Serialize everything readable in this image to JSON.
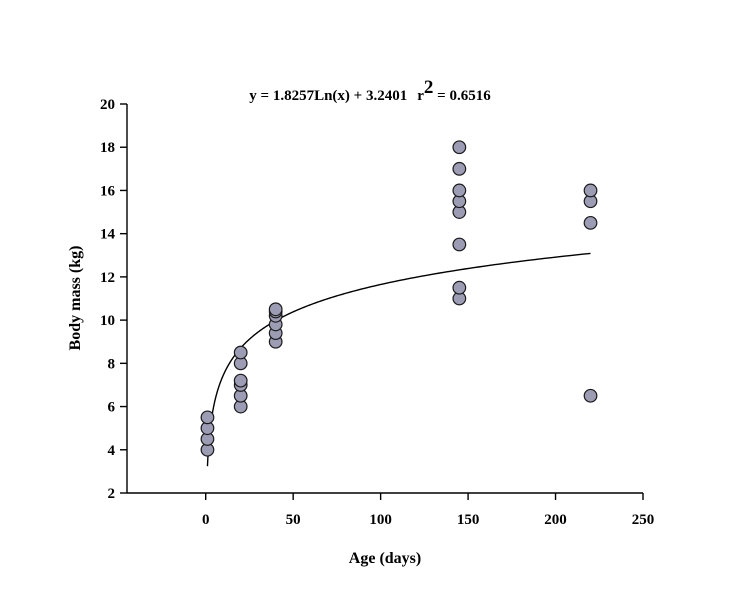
{
  "chart_data": {
    "type": "scatter",
    "title": "y = 1.8257Ln(x) + 3.2401",
    "r2_label": "r",
    "r2_exponent": "2",
    "r2_value": " = 0.6516",
    "xlabel": "Age (days)",
    "ylabel": "Body mass (kg)",
    "xlim": [
      -45,
      250
    ],
    "ylim": [
      2,
      20
    ],
    "x_ticks": [
      0,
      50,
      100,
      150,
      200,
      250
    ],
    "y_ticks": [
      2,
      4,
      6,
      8,
      10,
      12,
      14,
      16,
      18,
      20
    ],
    "grid": false,
    "legend": "none",
    "marker_color": "#9c9cb4",
    "trendline": {
      "type": "logarithmic",
      "a": 1.8257,
      "b": 3.2401,
      "x_range": [
        1,
        220
      ]
    },
    "series": [
      {
        "points": [
          {
            "x": 1,
            "y": 4.0
          },
          {
            "x": 1,
            "y": 4.5
          },
          {
            "x": 1,
            "y": 5.0
          },
          {
            "x": 1,
            "y": 5.5
          },
          {
            "x": 20,
            "y": 6.0
          },
          {
            "x": 20,
            "y": 6.5
          },
          {
            "x": 20,
            "y": 7.0
          },
          {
            "x": 20,
            "y": 7.2
          },
          {
            "x": 20,
            "y": 8.0
          },
          {
            "x": 20,
            "y": 8.5
          },
          {
            "x": 40,
            "y": 9.0
          },
          {
            "x": 40,
            "y": 9.4
          },
          {
            "x": 40,
            "y": 9.8
          },
          {
            "x": 40,
            "y": 10.2
          },
          {
            "x": 40,
            "y": 10.4
          },
          {
            "x": 40,
            "y": 10.5
          },
          {
            "x": 145,
            "y": 11.0
          },
          {
            "x": 145,
            "y": 11.5
          },
          {
            "x": 145,
            "y": 13.5
          },
          {
            "x": 145,
            "y": 15.0
          },
          {
            "x": 145,
            "y": 15.5
          },
          {
            "x": 145,
            "y": 16.0
          },
          {
            "x": 145,
            "y": 17.0
          },
          {
            "x": 145,
            "y": 18.0
          },
          {
            "x": 220,
            "y": 6.5
          },
          {
            "x": 220,
            "y": 14.5
          },
          {
            "x": 220,
            "y": 15.5
          },
          {
            "x": 220,
            "y": 16.0
          }
        ]
      }
    ]
  }
}
